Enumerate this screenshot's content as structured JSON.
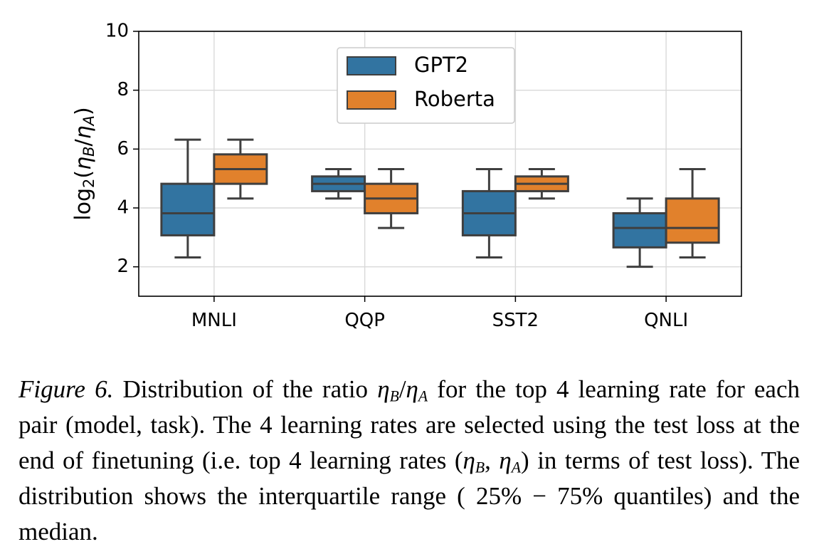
{
  "chart_data": {
    "type": "box",
    "categories": [
      "MNLI",
      "QQP",
      "SST2",
      "QNLI"
    ],
    "ylabel": "log₂(ηB/ηA)",
    "ylim": [
      1,
      10
    ],
    "yticks": [
      2,
      4,
      6,
      8,
      10
    ],
    "grid": true,
    "legend_position": "top-center",
    "series": [
      {
        "name": "GPT2",
        "color": "#3274a1",
        "boxes": [
          {
            "whisker_low": 2.32,
            "q1": 3.07,
            "median": 3.82,
            "q3": 4.82,
            "whisker_high": 6.32
          },
          {
            "whisker_low": 4.32,
            "q1": 4.57,
            "median": 4.82,
            "q3": 5.07,
            "whisker_high": 5.32
          },
          {
            "whisker_low": 2.32,
            "q1": 3.07,
            "median": 3.82,
            "q3": 4.57,
            "whisker_high": 5.32
          },
          {
            "whisker_low": 2.0,
            "q1": 2.66,
            "median": 3.32,
            "q3": 3.82,
            "whisker_high": 4.32
          }
        ]
      },
      {
        "name": "Roberta",
        "color": "#e1812c",
        "boxes": [
          {
            "whisker_low": 4.32,
            "q1": 4.82,
            "median": 5.32,
            "q3": 5.82,
            "whisker_high": 6.32
          },
          {
            "whisker_low": 3.32,
            "q1": 3.82,
            "median": 4.32,
            "q3": 4.82,
            "whisker_high": 5.32
          },
          {
            "whisker_low": 4.32,
            "q1": 4.57,
            "median": 4.82,
            "q3": 5.07,
            "whisker_high": 5.32
          },
          {
            "whisker_low": 2.32,
            "q1": 2.82,
            "median": 3.32,
            "q3": 4.32,
            "whisker_high": 5.32
          }
        ]
      }
    ]
  },
  "caption": {
    "label": "Figure 6.",
    "part1": "Distribution of the ratio",
    "ratio_eta": "η",
    "ratio_b": "B",
    "ratio_slash": "/",
    "ratio_a": "A",
    "part2": "for the top 4 learning rate for each pair (model, task). The 4 learning rates are selected using the test loss at the end of finetuning (i.e. top 4 learning rates",
    "pair_open": "(",
    "pair_b": "B",
    "pair_comma": ", ",
    "pair_a": "A",
    "pair_close": ")",
    "part3": "in terms of test loss). The distribution shows the interquartile range (",
    "range_text": "25% − 75%",
    "part4": "quantiles) and the median."
  }
}
